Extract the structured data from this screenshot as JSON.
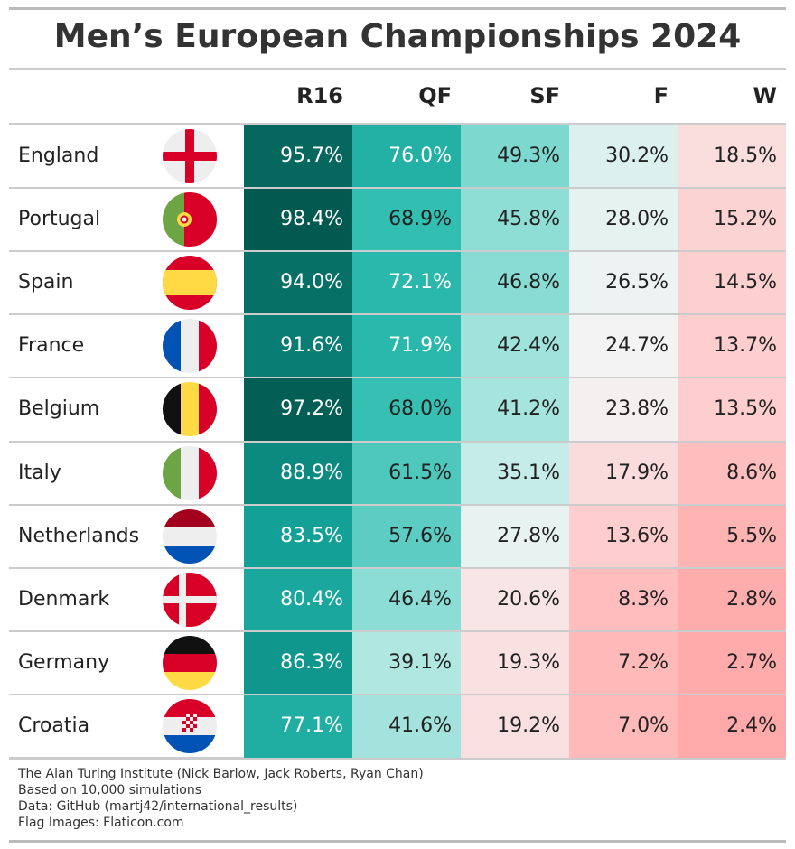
{
  "title": "Men’s European Championships 2024",
  "table": {
    "header": [
      "R16",
      "QF",
      "SF",
      "F",
      "W"
    ],
    "rows": [
      [
        "England",
        "95.7%",
        "76.0%",
        "49.3%",
        "30.2%",
        "18.5%"
      ],
      [
        "Portugal",
        "98.4%",
        "68.9%",
        "45.8%",
        "28.0%",
        "15.2%"
      ],
      [
        "Spain",
        "94.0%",
        "72.1%",
        "46.8%",
        "26.5%",
        "14.5%"
      ],
      [
        "France",
        "91.6%",
        "71.9%",
        "42.4%",
        "24.7%",
        "13.7%"
      ],
      [
        "Belgium",
        "97.2%",
        "68.0%",
        "41.2%",
        "23.8%",
        "13.5%"
      ],
      [
        "Italy",
        "88.9%",
        "61.5%",
        "35.1%",
        "17.9%",
        "8.6%"
      ],
      [
        "Netherlands",
        "83.5%",
        "57.6%",
        "27.8%",
        "13.6%",
        "5.5%"
      ],
      [
        "Denmark",
        "80.4%",
        "46.4%",
        "20.6%",
        "8.3%",
        "2.8%"
      ],
      [
        "Germany",
        "86.3%",
        "39.1%",
        "19.3%",
        "7.2%",
        "2.7%"
      ],
      [
        "Croatia",
        "77.1%",
        "41.6%",
        "19.2%",
        "7.0%",
        "2.4%"
      ]
    ]
  },
  "footer": [
    "The Alan Turing Institute (Nick Barlow, Jack Roberts, Ryan Chan)",
    "Based on 10,000 simulations",
    "Data: GitHub (martj42/international_results)",
    "Flag Images: Flaticon.com"
  ]
}
